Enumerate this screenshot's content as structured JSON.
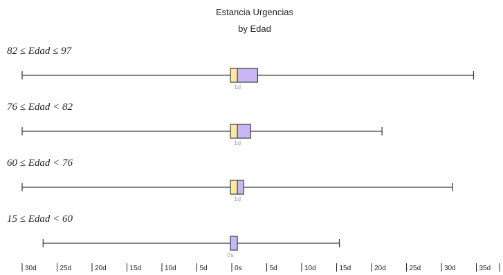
{
  "chart_data": {
    "type": "boxplot",
    "title": "Estancia Urgencias",
    "subtitle": "by Edad",
    "unit": "days",
    "colors": {
      "lower_box": "#fbe9a2",
      "upper_box": "#c8b6f5",
      "stroke": "#3d3d3d"
    },
    "xlim": [
      -30,
      37
    ],
    "ticks": [
      {
        "value": -30,
        "label": "30d"
      },
      {
        "value": -25,
        "label": "25d"
      },
      {
        "value": -20,
        "label": "20d"
      },
      {
        "value": -15,
        "label": "15d"
      },
      {
        "value": -10,
        "label": "10d"
      },
      {
        "value": -5,
        "label": "5d"
      },
      {
        "value": 0,
        "label": "0s"
      },
      {
        "value": 5,
        "label": "5d"
      },
      {
        "value": 10,
        "label": "10d"
      },
      {
        "value": 15,
        "label": "15d"
      },
      {
        "value": 20,
        "label": "20d"
      },
      {
        "value": 25,
        "label": "25d"
      },
      {
        "value": 30,
        "label": "30d"
      },
      {
        "value": 35,
        "label": "35d"
      }
    ],
    "groups": [
      {
        "label": "82 ≤ Edad ≤ 97",
        "min": -30,
        "q1": -0.2,
        "median": 0.8,
        "q3": 3.7,
        "max": 34.6,
        "median_label": "1d"
      },
      {
        "label": "76 ≤ Edad < 82",
        "min": -30,
        "q1": -0.2,
        "median": 0.8,
        "q3": 2.7,
        "max": 21.5,
        "median_label": "1d"
      },
      {
        "label": "60 ≤ Edad < 76",
        "min": -30,
        "q1": -0.2,
        "median": 0.8,
        "q3": 1.7,
        "max": 31.6,
        "median_label": "1d"
      },
      {
        "label": "15 ≤ Edad < 60",
        "min": -27,
        "q1": -0.2,
        "median": -0.2,
        "q3": 0.8,
        "max": 15.4,
        "median_label": "0s"
      }
    ]
  }
}
